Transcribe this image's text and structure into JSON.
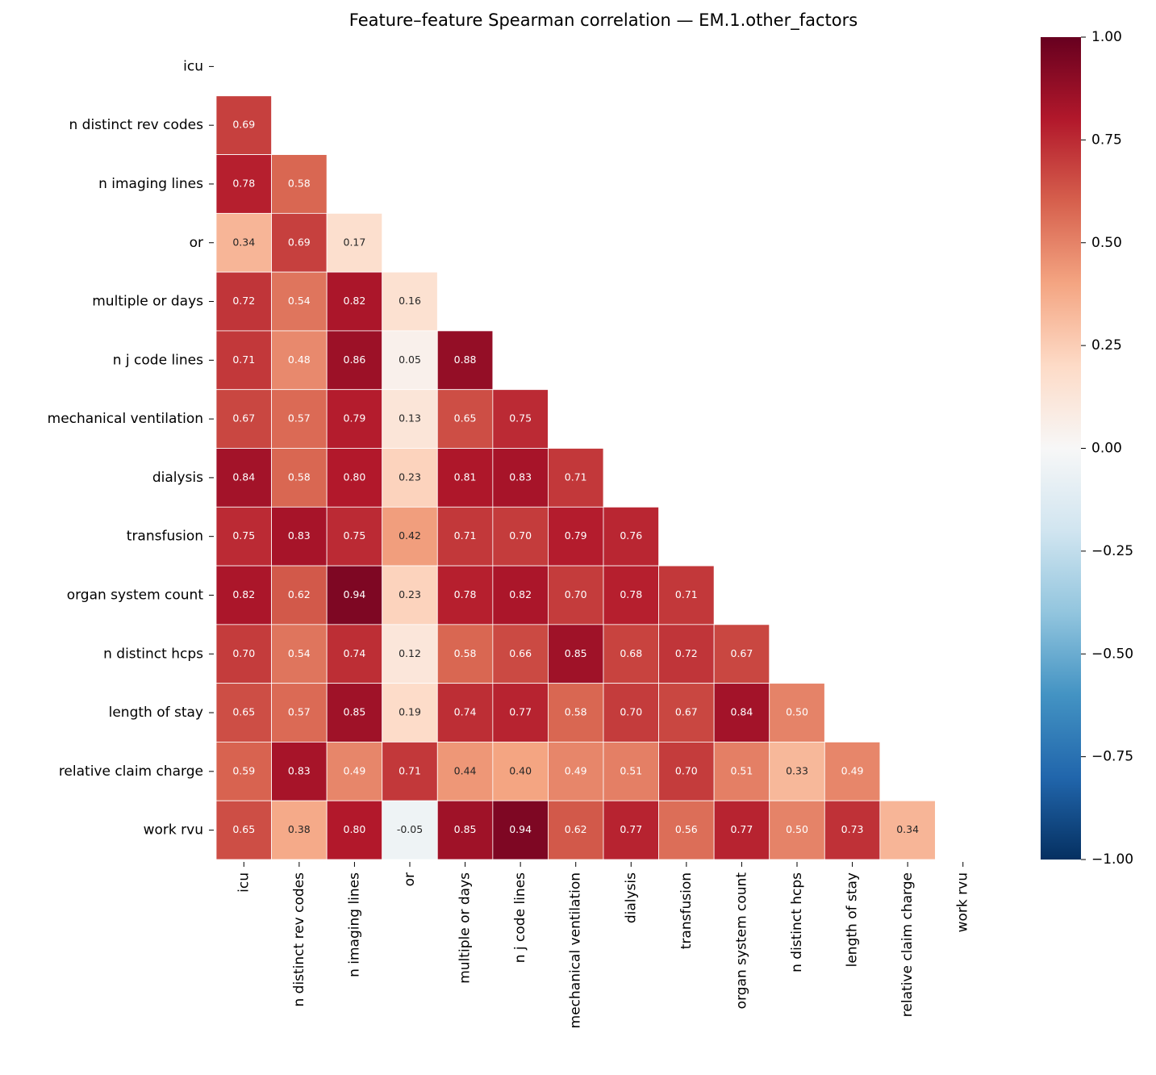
{
  "chart_data": {
    "type": "heatmap",
    "title": "Feature–feature Spearman correlation — EM.1.other_factors",
    "categories": [
      "icu",
      "n distinct rev codes",
      "n imaging lines",
      "or",
      "multiple or days",
      "n j code lines",
      "mechanical ventilation",
      "dialysis",
      "transfusion",
      "organ system count",
      "n distinct hcps",
      "length of stay",
      "relative claim charge",
      "work rvu"
    ],
    "values": [
      [],
      [
        0.69
      ],
      [
        0.78,
        0.58
      ],
      [
        0.34,
        0.69,
        0.17
      ],
      [
        0.72,
        0.54,
        0.82,
        0.16
      ],
      [
        0.71,
        0.48,
        0.86,
        0.05,
        0.88
      ],
      [
        0.67,
        0.57,
        0.79,
        0.13,
        0.65,
        0.75
      ],
      [
        0.84,
        0.58,
        0.8,
        0.23,
        0.81,
        0.83,
        0.71
      ],
      [
        0.75,
        0.83,
        0.75,
        0.42,
        0.71,
        0.7,
        0.79,
        0.76
      ],
      [
        0.82,
        0.62,
        0.94,
        0.23,
        0.78,
        0.82,
        0.7,
        0.78,
        0.71
      ],
      [
        0.7,
        0.54,
        0.74,
        0.12,
        0.58,
        0.66,
        0.85,
        0.68,
        0.72,
        0.67
      ],
      [
        0.65,
        0.57,
        0.85,
        0.19,
        0.74,
        0.77,
        0.58,
        0.7,
        0.67,
        0.84,
        0.5
      ],
      [
        0.59,
        0.83,
        0.49,
        0.71,
        0.44,
        0.4,
        0.49,
        0.51,
        0.7,
        0.51,
        0.33,
        0.49
      ],
      [
        0.65,
        0.38,
        0.8,
        -0.05,
        0.85,
        0.94,
        0.62,
        0.77,
        0.56,
        0.77,
        0.5,
        0.73,
        0.34
      ]
    ],
    "value_labels": [
      [],
      [
        "0.69"
      ],
      [
        "0.78",
        "0.58"
      ],
      [
        "0.34",
        "0.69",
        "0.17"
      ],
      [
        "0.72",
        "0.54",
        "0.82",
        "0.16"
      ],
      [
        "0.71",
        "0.48",
        "0.86",
        "0.05",
        "0.88"
      ],
      [
        "0.67",
        "0.57",
        "0.79",
        "0.13",
        "0.65",
        "0.75"
      ],
      [
        "0.84",
        "0.58",
        "0.80",
        "0.23",
        "0.81",
        "0.83",
        "0.71"
      ],
      [
        "0.75",
        "0.83",
        "0.75",
        "0.42",
        "0.71",
        "0.70",
        "0.79",
        "0.76"
      ],
      [
        "0.82",
        "0.62",
        "0.94",
        "0.23",
        "0.78",
        "0.82",
        "0.70",
        "0.78",
        "0.71"
      ],
      [
        "0.70",
        "0.54",
        "0.74",
        "0.12",
        "0.58",
        "0.66",
        "0.85",
        "0.68",
        "0.72",
        "0.67"
      ],
      [
        "0.65",
        "0.57",
        "0.85",
        "0.19",
        "0.74",
        "0.77",
        "0.58",
        "0.70",
        "0.67",
        "0.84",
        "0.50"
      ],
      [
        "0.59",
        "0.83",
        "0.49",
        "0.71",
        "0.44",
        "0.40",
        "0.49",
        "0.51",
        "0.70",
        "0.51",
        "0.33",
        "0.49"
      ],
      [
        "0.65",
        "0.38",
        "0.80",
        "-0.05",
        "0.85",
        "0.94",
        "0.62",
        "0.77",
        "0.56",
        "0.77",
        "0.50",
        "0.73",
        "0.34"
      ]
    ],
    "colormap": "RdBu_r",
    "clim": [
      -1,
      1
    ],
    "cticks": [
      {
        "value": -1,
        "label": "−1.00"
      },
      {
        "value": -0.75,
        "label": "−0.75"
      },
      {
        "value": -0.5,
        "label": "−0.50"
      },
      {
        "value": -0.25,
        "label": "−0.25"
      },
      {
        "value": 0,
        "label": "0.00"
      },
      {
        "value": 0.25,
        "label": "0.25"
      },
      {
        "value": 0.5,
        "label": "0.50"
      },
      {
        "value": 0.75,
        "label": "0.75"
      },
      {
        "value": 1,
        "label": "1.00"
      }
    ]
  }
}
